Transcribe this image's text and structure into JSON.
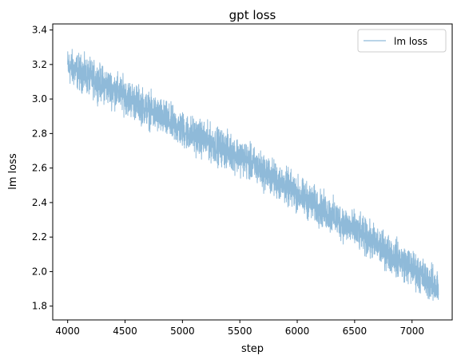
{
  "chart_data": {
    "type": "line",
    "title": "gpt loss",
    "xlabel": "step",
    "ylabel": "lm loss",
    "xlim": [
      3870,
      7350
    ],
    "ylim": [
      1.72,
      3.435
    ],
    "x_ticks": [
      4000,
      4500,
      5000,
      5500,
      6000,
      6500,
      7000
    ],
    "x_tick_labels": [
      "4000",
      "4500",
      "5000",
      "5500",
      "6000",
      "6500",
      "7000"
    ],
    "y_ticks": [
      1.8,
      2.0,
      2.2,
      2.4,
      2.6,
      2.8,
      3.0,
      3.2,
      3.4
    ],
    "y_tick_labels": [
      "1.8",
      "2.0",
      "2.2",
      "2.4",
      "2.6",
      "2.8",
      "3.0",
      "3.2",
      "3.4"
    ],
    "grid": false,
    "legend": {
      "position": "top-right",
      "entries": [
        "lm loss"
      ]
    },
    "series": [
      {
        "name": "lm loss",
        "color": "#8fbad9",
        "x_range": [
          4000,
          7230
        ],
        "trend": [
          {
            "x": 4000,
            "y": 3.19
          },
          {
            "x": 4500,
            "y": 3.02
          },
          {
            "x": 5000,
            "y": 2.82
          },
          {
            "x": 5500,
            "y": 2.67
          },
          {
            "x": 6000,
            "y": 2.45
          },
          {
            "x": 6500,
            "y": 2.24
          },
          {
            "x": 7000,
            "y": 2.02
          },
          {
            "x": 7230,
            "y": 1.9
          }
        ],
        "noise_amplitude": 0.05
      }
    ]
  }
}
